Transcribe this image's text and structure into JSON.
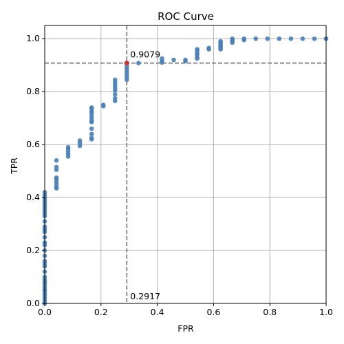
{
  "chart_data": {
    "type": "scatter",
    "title": "ROC Curve",
    "xlabel": "FPR",
    "ylabel": "TPR",
    "xlim": [
      0.0,
      1.0
    ],
    "ylim": [
      0.0,
      1.05
    ],
    "xticks": [
      "0.0",
      "0.2",
      "0.4",
      "0.6",
      "0.8",
      "1.0"
    ],
    "yticks": [
      "0.0",
      "0.2",
      "0.4",
      "0.6",
      "0.8",
      "1.0"
    ],
    "grid": true,
    "colors": {
      "points": "#4a7fb5",
      "highlight": "#c0393b",
      "guide": "#707070",
      "grid": "#b0b0b0"
    },
    "points": {
      "x": [
        0,
        0,
        0,
        0,
        0,
        0,
        0,
        0,
        0,
        0,
        0,
        0,
        0,
        0,
        0,
        0,
        0,
        0,
        0,
        0,
        0,
        0,
        0,
        0,
        0,
        0,
        0,
        0,
        0,
        0,
        0,
        0,
        0,
        0,
        0,
        0,
        0.0417,
        0.0417,
        0.0417,
        0.0417,
        0.0417,
        0.0417,
        0.0417,
        0.0417,
        0.0417,
        0.0833,
        0.0833,
        0.0833,
        0.0833,
        0.0833,
        0.125,
        0.125,
        0.125,
        0.1667,
        0.1667,
        0.1667,
        0.1667,
        0.1667,
        0.1667,
        0.1667,
        0.1667,
        0.1667,
        0.1667,
        0.1667,
        0.1667,
        0.2083,
        0.2083,
        0.25,
        0.25,
        0.25,
        0.25,
        0.25,
        0.25,
        0.25,
        0.25,
        0.2917,
        0.2917,
        0.2917,
        0.2917,
        0.2917,
        0.2917,
        0.2917,
        0.3333,
        0.4167,
        0.4167,
        0.4167,
        0.4583,
        0.5,
        0.5,
        0.5417,
        0.5417,
        0.5417,
        0.5417,
        0.5417,
        0.5417,
        0.5833,
        0.5833,
        0.625,
        0.625,
        0.625,
        0.625,
        0.625,
        0.625,
        0.625,
        0.6667,
        0.6667,
        0.6667,
        0.6667,
        0.7083,
        0.7083,
        0.75,
        0.7917,
        0.8333,
        0.875,
        0.9167,
        0.9583,
        1.0
      ],
      "y": [
        0.0,
        0.01,
        0.02,
        0.03,
        0.04,
        0.05,
        0.06,
        0.07,
        0.08,
        0.09,
        0.12,
        0.14,
        0.15,
        0.16,
        0.2,
        0.23,
        0.27,
        0.28,
        0.29,
        0.34,
        0.35,
        0.36,
        0.37,
        0.4,
        0.41,
        0.42,
        0.05,
        0.08,
        0.1,
        0.18,
        0.22,
        0.25,
        0.31,
        0.33,
        0.38,
        0.39,
        0.435,
        0.44,
        0.45,
        0.46,
        0.47,
        0.475,
        0.505,
        0.515,
        0.54,
        0.555,
        0.565,
        0.575,
        0.585,
        0.59,
        0.595,
        0.605,
        0.615,
        0.62,
        0.625,
        0.64,
        0.66,
        0.685,
        0.69,
        0.7,
        0.71,
        0.72,
        0.725,
        0.735,
        0.74,
        0.745,
        0.75,
        0.765,
        0.775,
        0.79,
        0.805,
        0.815,
        0.825,
        0.835,
        0.845,
        0.845,
        0.855,
        0.865,
        0.875,
        0.885,
        0.895,
        0.9079,
        0.9079,
        0.91,
        0.915,
        0.925,
        0.92,
        0.915,
        0.92,
        0.925,
        0.93,
        0.94,
        0.945,
        0.955,
        0.96,
        0.96,
        0.965,
        0.96,
        0.965,
        0.97,
        0.975,
        0.98,
        0.985,
        0.99,
        0.985,
        0.99,
        0.995,
        1.0,
        0.995,
        1.0,
        1.0,
        1.0,
        1.0,
        1.0,
        1.0,
        1.0,
        1.0
      ]
    },
    "highlight": {
      "x": 0.2917,
      "y": 0.9079
    },
    "annotations": {
      "threshold_tpr": "0.9079",
      "threshold_fpr": "0.2917"
    }
  }
}
